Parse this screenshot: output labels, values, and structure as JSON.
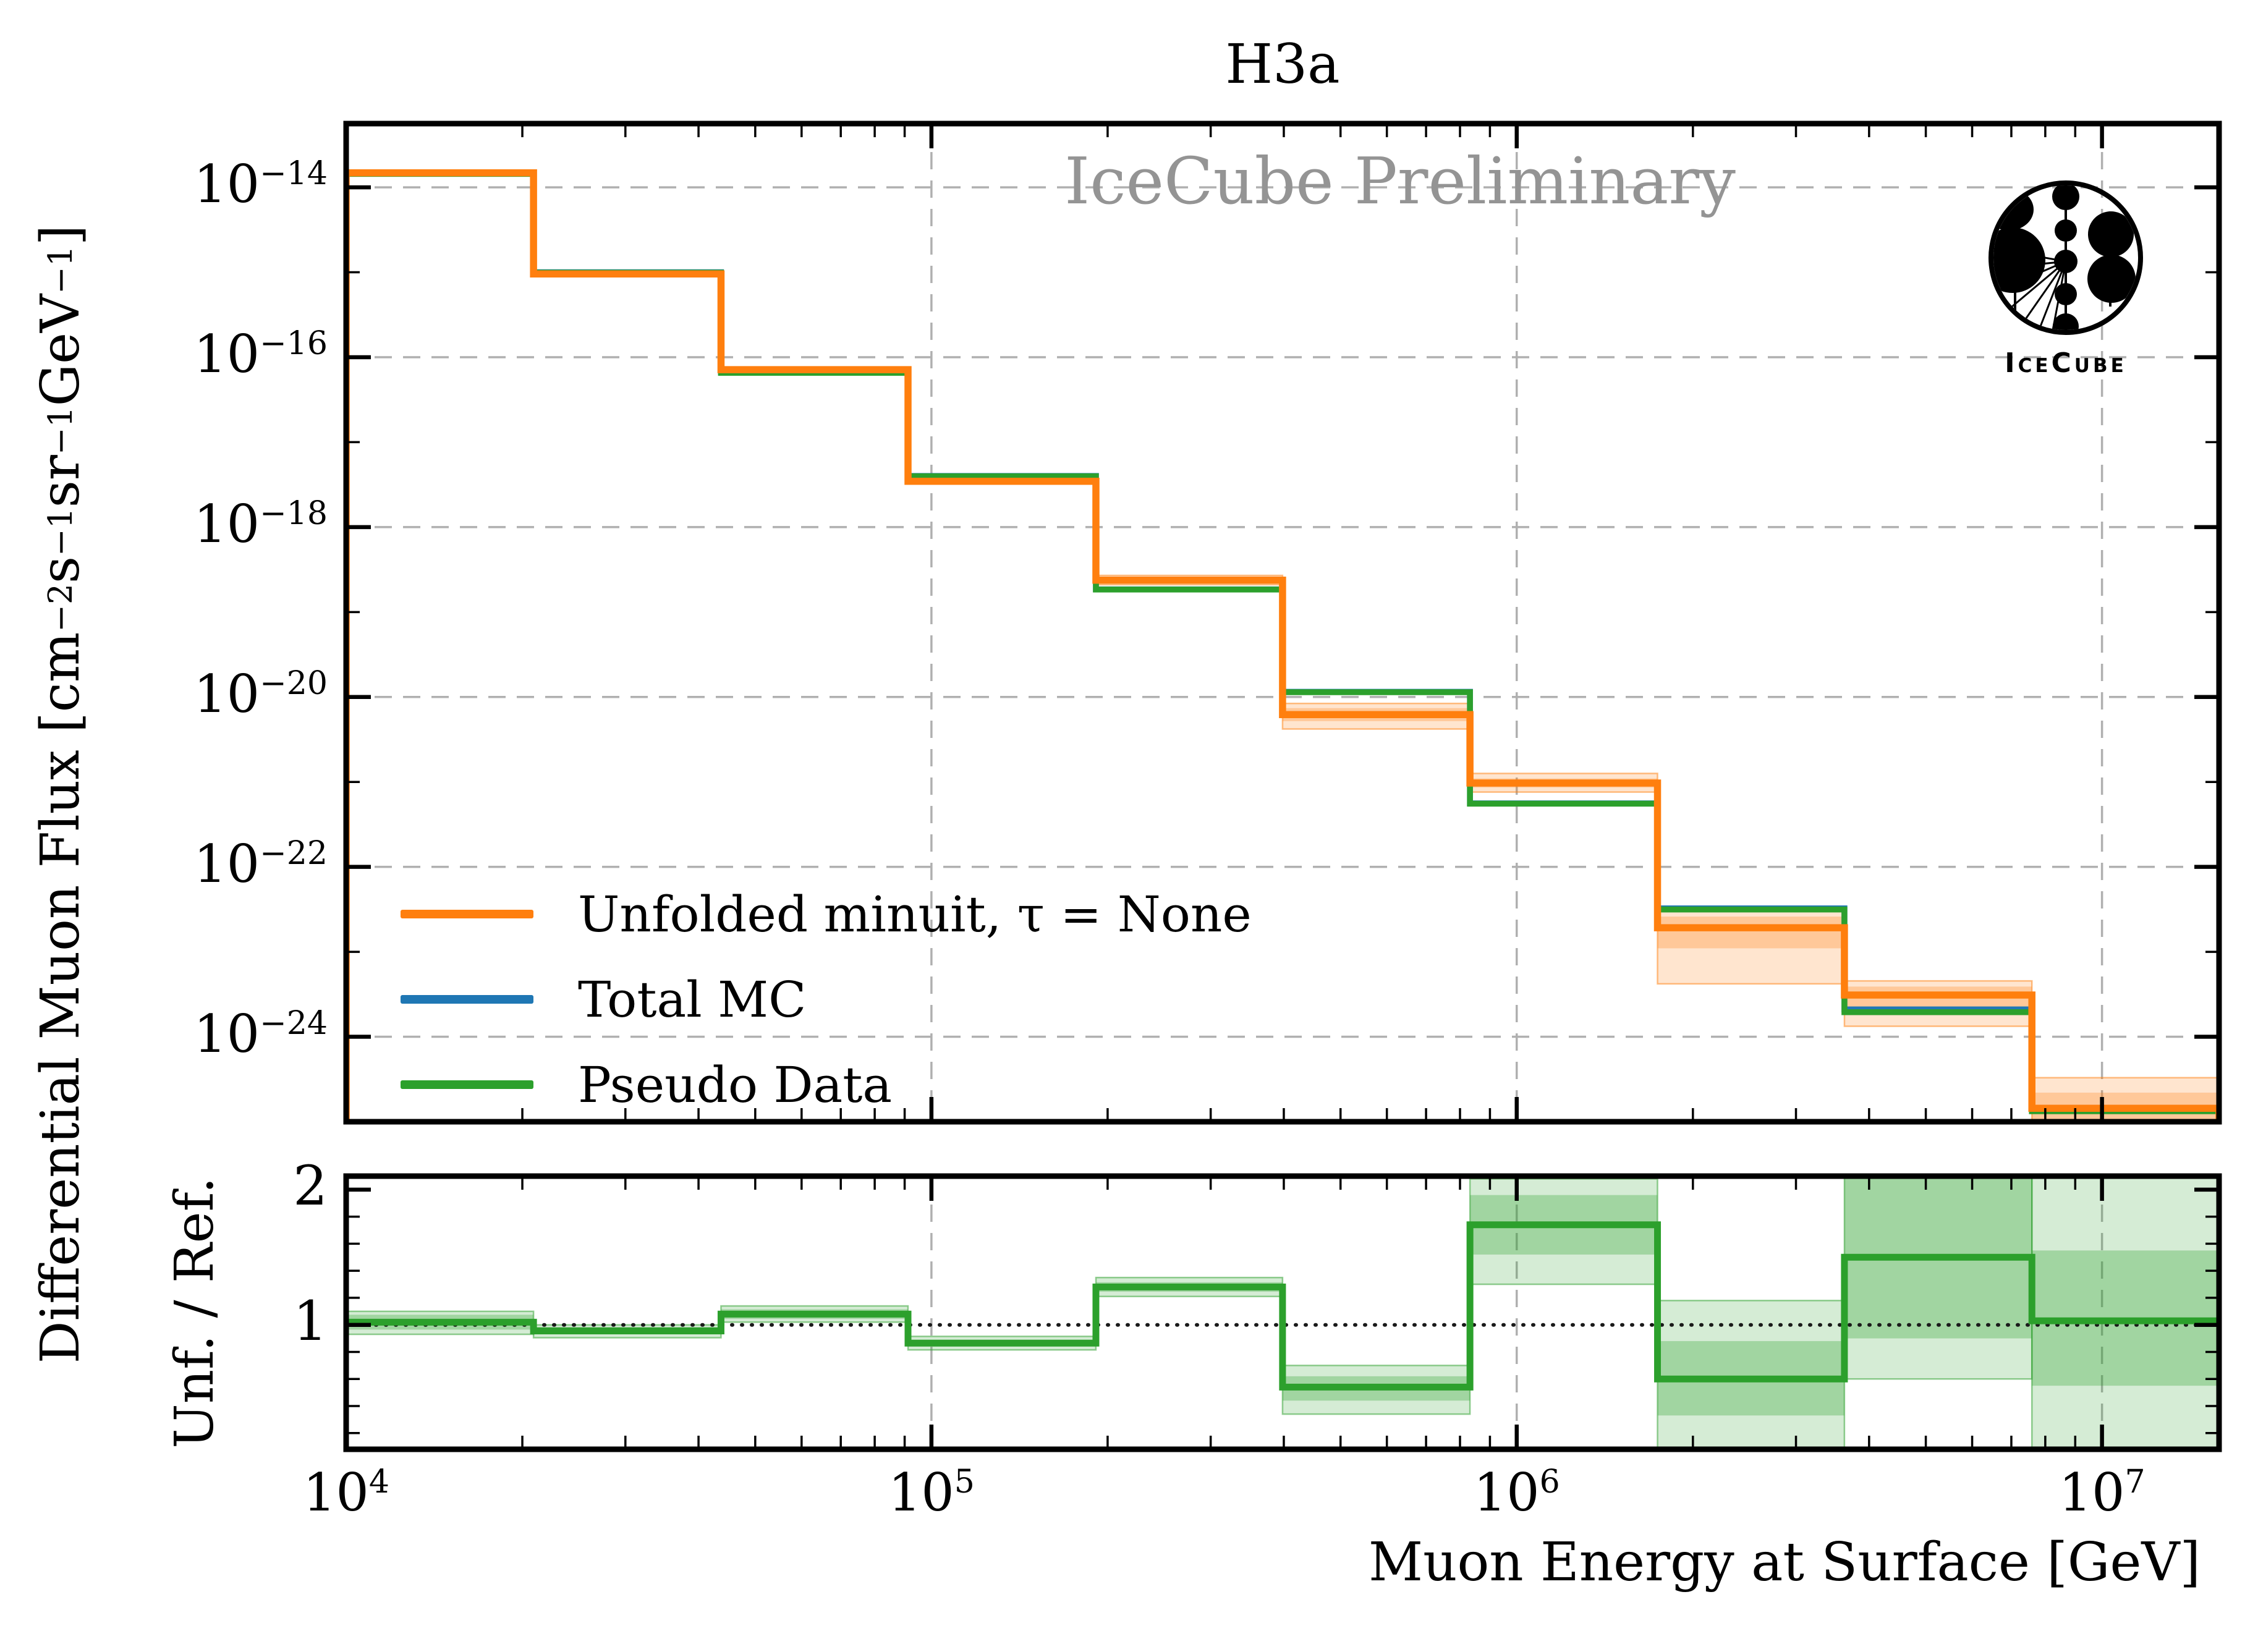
{
  "header": {
    "title": "H3a"
  },
  "watermark": {
    "text": "IceCube Preliminary"
  },
  "axes": {
    "x": {
      "label": "Muon Energy at Surface [GeV]",
      "tick_exponents": [
        4,
        5,
        6,
        7
      ]
    },
    "y": {
      "label_segments": [
        {
          "t": "Differential Muon Flux [cm"
        },
        {
          "sup": "−2"
        },
        {
          "t": " s"
        },
        {
          "sup": "−1"
        },
        {
          "t": " sr"
        },
        {
          "sup": "−1"
        },
        {
          "t": " GeV"
        },
        {
          "sup": "−1"
        },
        {
          "t": "]"
        }
      ],
      "tick_exponents": [
        -14,
        -16,
        -18,
        -20,
        -22,
        -24
      ]
    },
    "ratio_ylabel": "Unf. / Ref.",
    "ratio_ticks": [
      2,
      1
    ]
  },
  "legend": {
    "items": [
      {
        "label": "Unfolded minuit, τ = None",
        "color": "#ff7f0e"
      },
      {
        "label": "Total MC",
        "color": "#1f77b4"
      },
      {
        "label": "Pseudo Data",
        "color": "#2ca02c"
      }
    ]
  },
  "logo": {
    "caption": "IceCube"
  },
  "colors": {
    "unfolded": "#ff7f0e",
    "total_mc": "#1f77b4",
    "pseudo_data": "#2ca02c",
    "grid": "#b0b0b0",
    "watermark": "#949494",
    "orange_band": "rgba(255,127,14,0.20)",
    "orange_band_inner": "rgba(255,127,14,0.28)",
    "green_band": "rgba(44,160,44,0.20)",
    "green_band_inner": "rgba(44,160,44,0.30)"
  },
  "chart_data": {
    "type": "line",
    "subtype": "step-histogram",
    "title": "H3a",
    "xlabel": "Muon Energy at Surface [GeV]",
    "x_scale": "log",
    "x_range": [
      10000,
      15850000
    ],
    "bin_edges": [
      10000,
      20900,
      43700,
      91200,
      191000,
      398000,
      832000,
      1740000,
      3630000,
      7590000,
      15850000
    ],
    "main_panel": {
      "ylabel": "Differential Muon Flux [cm^-2 s^-1 sr^-1 GeV^-1]",
      "y_scale": "log",
      "y_range": [
        1e-25,
        5.6e-14
      ],
      "grid": true,
      "legend_position": "center-left",
      "series": [
        {
          "name": "Unfolded minuit, τ = None",
          "color": "#ff7f0e",
          "values": [
            1.48e-14,
            9.55e-16,
            7.13e-17,
            3.46e-18,
            2.37e-19,
            6.2e-21,
            9.7e-22,
            1.92e-23,
            3.1e-24,
            1.44e-25
          ],
          "band_lo": [
            1.43e-14,
            9.3e-16,
            6.9e-17,
            3.35e-18,
            2.1e-19,
            4.2e-21,
            7.6e-22,
            4.2e-24,
            1.33e-24,
            5.8e-26
          ],
          "band_hi": [
            1.52e-14,
            9.8e-16,
            7.4e-17,
            3.58e-18,
            2.7e-19,
            8.4e-21,
            1.26e-21,
            3.3e-23,
            4.55e-24,
            3.3e-25
          ],
          "inner_lo": [
            1.455e-14,
            9.42e-16,
            7.02e-17,
            3.41e-18,
            2.25e-19,
            5.2e-21,
            8.6e-22,
            1.1e-23,
            2.2e-24,
            1e-25
          ],
          "inner_hi": [
            1.5e-14,
            9.68e-16,
            7.24e-17,
            3.52e-18,
            2.55e-19,
            7.4e-21,
            1.1e-21,
            2.6e-23,
            3.9e-24,
            2.2e-25
          ]
        },
        {
          "name": "Total MC",
          "color": "#1f77b4",
          "values": [
            1.45e-14,
            1e-15,
            6.6e-17,
            4e-18,
            1.85e-19,
            1.15e-20,
            5.6e-22,
            3.25e-23,
            2.1e-24,
            1.42e-25
          ]
        },
        {
          "name": "Pseudo Data",
          "color": "#2ca02c",
          "values": [
            1.44e-14,
            9.9e-16,
            6.55e-17,
            3.97e-18,
            1.84e-19,
            1.14e-20,
            5.55e-22,
            3.15e-23,
            1.95e-24,
            1.33e-25
          ]
        }
      ]
    },
    "ratio_panel": {
      "ylabel": "Unf. / Ref.",
      "y_scale": "linear",
      "y_range": [
        0.08,
        2.1
      ],
      "reference_line": 1.0,
      "line": [
        1.02,
        0.955,
        1.08,
        0.865,
        1.28,
        0.54,
        1.74,
        0.6,
        1.5,
        1.03
      ],
      "band_lo": [
        0.93,
        0.905,
        1.02,
        0.815,
        1.21,
        0.34,
        1.3,
        0.05,
        0.6,
        0.08
      ],
      "band_hi": [
        1.1,
        1.0,
        1.14,
        0.915,
        1.35,
        0.7,
        2.08,
        1.18,
        2.1,
        2.1
      ],
      "inner_lo": [
        0.965,
        0.93,
        1.045,
        0.84,
        1.245,
        0.44,
        1.52,
        0.33,
        0.9,
        0.55
      ],
      "inner_hi": [
        1.075,
        0.985,
        1.115,
        0.89,
        1.315,
        0.62,
        1.96,
        0.88,
        2.1,
        1.55
      ]
    }
  }
}
